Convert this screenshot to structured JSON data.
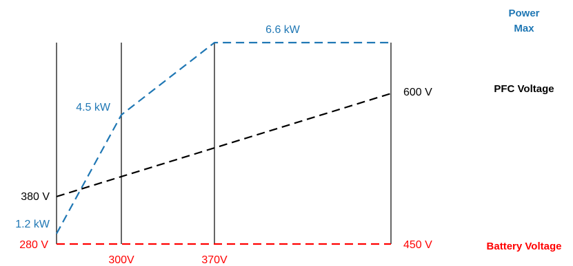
{
  "chart_data": {
    "type": "line",
    "x": [
      280,
      300,
      370,
      450
    ],
    "x_tick_labels": [
      "280 V",
      "300V",
      "370V",
      "450 V"
    ],
    "series": [
      {
        "name": "Power Max",
        "color": "#1f77b4",
        "points": [
          {
            "x": 280,
            "y": 1.2
          },
          {
            "x": 300,
            "y": 4.5
          },
          {
            "x": 370,
            "y": 6.6
          },
          {
            "x": 450,
            "y": 6.6
          }
        ],
        "labels": [
          {
            "x": 280,
            "text": "1.2 kW"
          },
          {
            "x": 300,
            "text": "4.5 kW"
          },
          {
            "x": 370,
            "text": "6.6 kW"
          }
        ]
      },
      {
        "name": "PFC Voltage",
        "color": "#000000",
        "points": [
          {
            "x": 280,
            "y": 380
          },
          {
            "x": 450,
            "y": 600
          }
        ],
        "labels": [
          {
            "x": 280,
            "text": "380 V"
          },
          {
            "x": 450,
            "text": "600 V"
          }
        ]
      },
      {
        "name": "Battery Voltage",
        "color": "#ff0000",
        "points": [
          {
            "x": 280,
            "y": 280
          },
          {
            "x": 450,
            "y": 450
          }
        ],
        "labels": [
          {
            "x": 280,
            "text": "280 V"
          },
          {
            "x": 450,
            "text": "450 V"
          }
        ]
      }
    ],
    "legend": {
      "power": [
        "Power",
        "Max"
      ],
      "pfc": "PFC Voltage",
      "battery": "Battery Voltage"
    },
    "grid": false
  }
}
